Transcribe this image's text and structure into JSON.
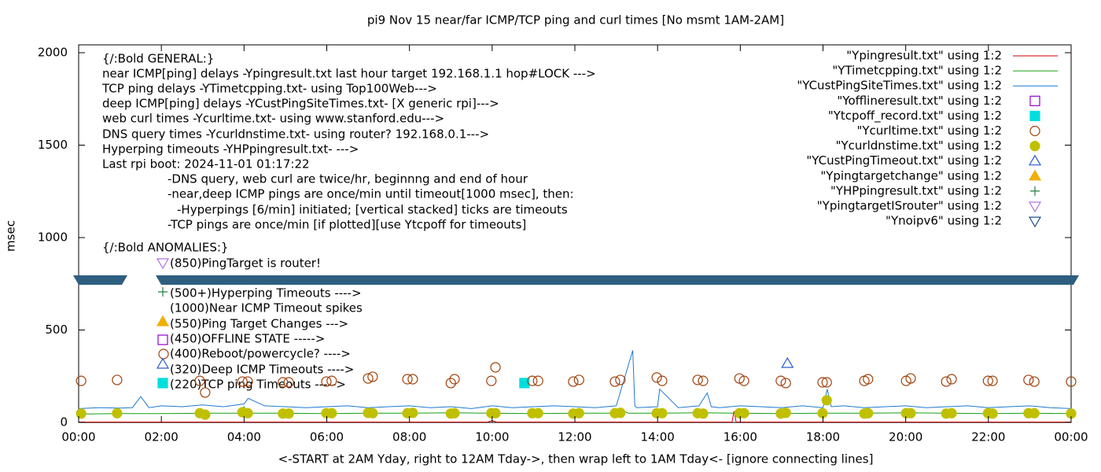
{
  "chart_data": {
    "type": "line",
    "title": "pi9 Nov 15  near/far ICMP/TCP ping and curl times [No msmt 1AM-2AM]",
    "x_label": "<-START at 2AM Yday, right to 12AM Tday->, then wrap left to 1AM Tday<- [ignore connecting lines]",
    "y_label": "msec",
    "xlim": [
      0,
      24
    ],
    "ylim": [
      0,
      2000
    ],
    "xticks": [
      {
        "value": 0,
        "label": "00:00"
      },
      {
        "value": 2,
        "label": "02:00"
      },
      {
        "value": 4,
        "label": "04:00"
      },
      {
        "value": 6,
        "label": "06:00"
      },
      {
        "value": 8,
        "label": "08:00"
      },
      {
        "value": 10,
        "label": "10:00"
      },
      {
        "value": 12,
        "label": "12:00"
      },
      {
        "value": 14,
        "label": "14:00"
      },
      {
        "value": 16,
        "label": "16:00"
      },
      {
        "value": 18,
        "label": "18:00"
      },
      {
        "value": 20,
        "label": "20:00"
      },
      {
        "value": 22,
        "label": "22:00"
      },
      {
        "value": 24,
        "label": "00:00"
      }
    ],
    "yticks": [
      0,
      500,
      1000,
      1500,
      2000
    ],
    "legend": "top-right",
    "annotations": [
      "{/:Bold GENERAL:}",
      "near ICMP[ping] delays -Ypingresult.txt last hour target 192.168.1.1 hop#LOCK --->",
      "TCP ping delays -YTimetcpping.txt- using Top100Web--->",
      "deep ICMP[ping] delays -YCustPingSiteTimes.txt- [X generic rpi]--->",
      "web curl times -Ycurltime.txt- using www.stanford.edu--->",
      "DNS query times -Ycurldnstime.txt- using router? 192.168.0.1--->",
      "Hyperping timeouts -YHPpingresult.txt- --->",
      "Last rpi boot: 2024-11-01 01:17:22",
      "-DNS query, web curl are twice/hr, beginnng and end of hour",
      "-near,deep ICMP pings are once/min until timeout[1000 msec], then:",
      "-Hyperpings [6/min] initiated; [vertical stacked] ticks are timeouts",
      "-TCP pings are once/min [if plotted][use Ytcpoff for timeouts]",
      "{/:Bold ANOMALIES:}",
      "(850)PingTarget is router!",
      "(500+)Hyperping Timeouts ---->",
      "(1000)Near ICMP Timeout spikes",
      "(550)Ping Target Changes --->",
      "(450)OFFLINE STATE ----->",
      "(400)Reboot/powercycle? ---->",
      "(320)Deep ICMP Timeouts ---->",
      "(220)TCP ping Timeouts ----->"
    ],
    "series": [
      {
        "name": "\"Ypingresult.txt\" using 1:2",
        "color": "#cc0000",
        "style": "line",
        "x": [
          0,
          5,
          9.9,
          10,
          10.1,
          12,
          15.8,
          15.85,
          15.9,
          18,
          24
        ],
        "values": [
          2,
          2,
          2,
          10,
          2,
          2,
          2,
          60,
          2,
          2,
          2
        ]
      },
      {
        "name": "\"YTimetcpping.txt\" using 1:2",
        "color": "#14a014",
        "style": "line",
        "x": [
          0,
          1,
          2,
          3,
          3.9,
          4,
          4.1,
          5,
          6,
          7,
          8,
          9,
          10,
          11,
          12,
          13,
          13.2,
          13.3,
          14,
          15,
          16,
          17,
          18,
          19,
          20,
          21,
          22,
          23,
          24
        ],
        "values": [
          45,
          48,
          48,
          50,
          50,
          85,
          50,
          50,
          48,
          50,
          50,
          52,
          50,
          48,
          50,
          50,
          60,
          50,
          50,
          52,
          50,
          48,
          50,
          50,
          52,
          50,
          48,
          50,
          48
        ]
      },
      {
        "name": "\"YCustPingSiteTimes.txt\" using 1:2",
        "color": "#1f78d1",
        "style": "line",
        "x": [
          0,
          0.5,
          1,
          1.3,
          1.5,
          1.7,
          2,
          2.5,
          3,
          3.5,
          4,
          4.1,
          4.5,
          5,
          5.5,
          6,
          6.5,
          7,
          7.5,
          8,
          8.5,
          9,
          9.5,
          10,
          10.5,
          11,
          11.5,
          12,
          12.5,
          13,
          13.4,
          13.45,
          13.5,
          14,
          14.05,
          14.5,
          15,
          15.2,
          15.3,
          15.5,
          16,
          16.5,
          17,
          17.5,
          18,
          18.1,
          18.2,
          18.5,
          19,
          19.5,
          20,
          20.5,
          21,
          21.5,
          22,
          22.5,
          23,
          23.5,
          24
        ],
        "values": [
          75,
          80,
          78,
          80,
          140,
          80,
          90,
          85,
          95,
          85,
          100,
          130,
          90,
          85,
          80,
          85,
          90,
          80,
          85,
          90,
          80,
          85,
          75,
          90,
          80,
          85,
          90,
          85,
          80,
          90,
          390,
          90,
          80,
          85,
          180,
          80,
          90,
          160,
          85,
          80,
          90,
          85,
          80,
          90,
          80,
          180,
          85,
          90,
          80,
          85,
          90,
          80,
          85,
          90,
          80,
          85,
          90,
          80,
          75
        ]
      },
      {
        "name": "\"Yofflineresult.txt\" using 1:2",
        "color": "#9400d3",
        "style": "square-open",
        "x": [],
        "values": []
      },
      {
        "name": "\"Ytcpoff_record.txt\" using 1:2",
        "color": "#00dede",
        "style": "square-filled",
        "x": [
          10.78
        ],
        "values": [
          213
        ]
      },
      {
        "name": "\"Ycurltime.txt\" using 1:2",
        "color": "#a0400a",
        "style": "circle-open",
        "x": [
          0.06,
          0.93,
          2.93,
          3.06,
          3.96,
          4.09,
          4.94,
          5.08,
          5.99,
          6.12,
          7.0,
          7.11,
          7.95,
          8.08,
          9.0,
          9.09,
          9.98,
          10.08,
          10.97,
          11.11,
          11.96,
          12.1,
          12.97,
          13.1,
          13.98,
          14.11,
          14.97,
          15.1,
          15.98,
          16.09,
          16.98,
          17.1,
          17.99,
          18.09,
          19.0,
          19.09,
          20.01,
          20.12,
          20.98,
          21.11,
          21.99,
          22.1,
          22.97,
          23.11,
          24.0
        ],
        "values": [
          225,
          230,
          225,
          162,
          221,
          221,
          217,
          217,
          221,
          225,
          238,
          247,
          234,
          234,
          213,
          234,
          225,
          298,
          225,
          225,
          221,
          230,
          221,
          230,
          243,
          225,
          230,
          225,
          238,
          225,
          225,
          213,
          217,
          217,
          225,
          234,
          225,
          238,
          221,
          234,
          225,
          225,
          230,
          221,
          221
        ]
      },
      {
        "name": "\"Ycurldnstime.txt\" using 1:2",
        "color": "#c0c000",
        "style": "circle-filled",
        "x": [
          0.06,
          0.93,
          2.93,
          3.06,
          3.96,
          4.09,
          4.94,
          5.08,
          5.99,
          6.12,
          7.0,
          7.11,
          7.95,
          8.08,
          9.0,
          9.09,
          9.98,
          10.08,
          10.97,
          11.11,
          11.96,
          12.1,
          12.97,
          13.1,
          13.98,
          14.11,
          14.97,
          15.1,
          15.98,
          16.09,
          16.98,
          17.1,
          17.99,
          18.09,
          19.0,
          19.09,
          20.01,
          20.12,
          20.98,
          21.11,
          21.99,
          22.1,
          22.97,
          23.11,
          24.0
        ],
        "values": [
          48,
          50,
          50,
          42,
          55,
          50,
          48,
          48,
          50,
          50,
          52,
          50,
          50,
          52,
          48,
          50,
          50,
          50,
          50,
          50,
          48,
          50,
          50,
          52,
          50,
          50,
          50,
          48,
          50,
          50,
          48,
          52,
          50,
          120,
          48,
          50,
          50,
          50,
          48,
          50,
          50,
          48,
          50,
          50,
          48
        ]
      },
      {
        "name": "\"YCustPingTimeout.txt\" using 1:2",
        "color": "#2a5cc8",
        "style": "triangle-open",
        "x": [
          17.14
        ],
        "values": [
          319
        ]
      },
      {
        "name": "\"Ypingtargetchange\" using 1:2",
        "color": "#f0b000",
        "style": "triangle-filled",
        "x": [],
        "values": []
      },
      {
        "name": "\"YHPpingresult.txt\" using 1:2",
        "color": "#208040",
        "style": "plus",
        "x": [],
        "values": []
      },
      {
        "name": "\"YpingtargetISrouter\" using 1:2",
        "color": "#b070e0",
        "style": "tridown-open",
        "x": [],
        "values": []
      },
      {
        "name": "\"Ynoipv6\" using 1:2",
        "color": "#1f4e8c",
        "style": "tridown-open",
        "x": [],
        "values": []
      }
    ]
  }
}
